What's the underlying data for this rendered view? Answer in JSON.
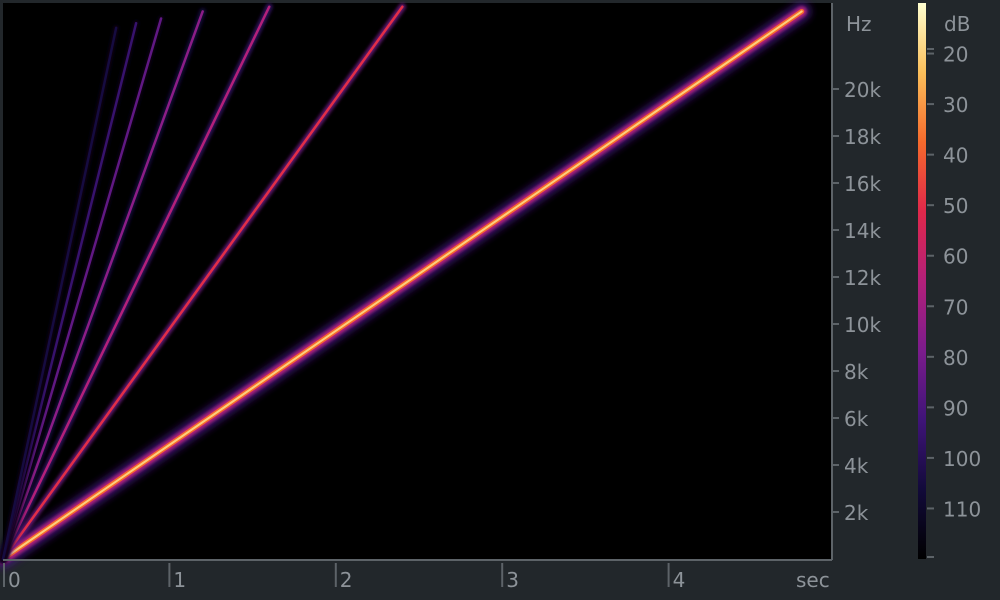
{
  "chart_data": {
    "type": "heatmap",
    "subtype": "spectrogram",
    "x_unit": "sec",
    "y_unit": "Hz",
    "colorbar_unit": "dB",
    "xlim": [
      0,
      5
    ],
    "ylim": [
      0,
      24000
    ],
    "x_ticks": [
      {
        "value": 0,
        "label": "0"
      },
      {
        "value": 1,
        "label": "1"
      },
      {
        "value": 2,
        "label": "2"
      },
      {
        "value": 3,
        "label": "3"
      },
      {
        "value": 4,
        "label": "4"
      }
    ],
    "y_ticks": [
      {
        "value": 2000,
        "label": "2k"
      },
      {
        "value": 4000,
        "label": "4k"
      },
      {
        "value": 6000,
        "label": "6k"
      },
      {
        "value": 8000,
        "label": "8k"
      },
      {
        "value": 10000,
        "label": "10k"
      },
      {
        "value": 12000,
        "label": "12k"
      },
      {
        "value": 14000,
        "label": "14k"
      },
      {
        "value": 16000,
        "label": "16k"
      },
      {
        "value": 18000,
        "label": "18k"
      },
      {
        "value": 20000,
        "label": "20k"
      }
    ],
    "colorbar_ticks": [
      {
        "value": 20,
        "label": "20"
      },
      {
        "value": 30,
        "label": "30"
      },
      {
        "value": 40,
        "label": "40"
      },
      {
        "value": 50,
        "label": "50"
      },
      {
        "value": 60,
        "label": "60"
      },
      {
        "value": 70,
        "label": "70"
      },
      {
        "value": 80,
        "label": "80"
      },
      {
        "value": 90,
        "label": "90"
      },
      {
        "value": 100,
        "label": "100"
      },
      {
        "value": 110,
        "label": "110"
      }
    ],
    "colorbar_range": [
      10,
      120
    ],
    "colormap": [
      "#ffffd0",
      "#fbbf5a",
      "#f66a2c",
      "#e0284a",
      "#b3207a",
      "#7c1c8c",
      "#3f1478",
      "#120a3a",
      "#000000"
    ],
    "series": [
      {
        "end_time": 4.8,
        "end_freq": 23300,
        "level_db": 20
      },
      {
        "end_time": 2.4,
        "end_freq": 23500,
        "level_db": 50
      },
      {
        "end_time": 1.6,
        "end_freq": 23500,
        "level_db": 65
      },
      {
        "end_time": 1.2,
        "end_freq": 23300,
        "level_db": 75
      },
      {
        "end_time": 0.95,
        "end_freq": 23000,
        "level_db": 85
      },
      {
        "end_time": 0.8,
        "end_freq": 22800,
        "level_db": 95
      },
      {
        "end_time": 0.68,
        "end_freq": 22600,
        "level_db": 105
      }
    ]
  }
}
